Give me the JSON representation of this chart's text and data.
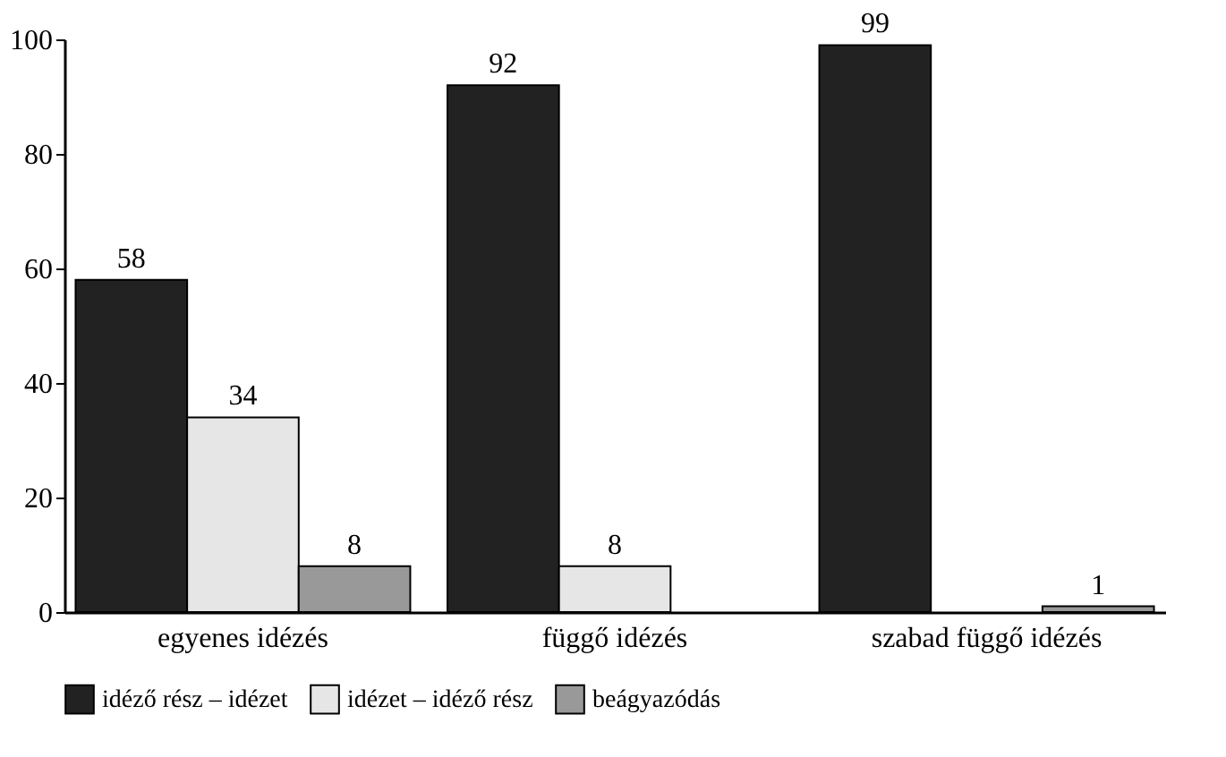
{
  "chart_data": {
    "type": "bar",
    "categories": [
      "egyenes idézés",
      "függő idézés",
      "szabad függő idézés"
    ],
    "series": [
      {
        "name": "idéző rész – idézet",
        "color": "#222222",
        "values": [
          58,
          92,
          99
        ],
        "value_labels": [
          "58",
          "92",
          "99"
        ]
      },
      {
        "name": "idézet – idéző rész",
        "color": "#e6e6e6",
        "values": [
          34,
          8,
          null
        ],
        "value_labels": [
          "34",
          "8",
          null
        ]
      },
      {
        "name": "beágyazódás",
        "color": "#999999",
        "values": [
          8,
          null,
          1
        ],
        "value_labels": [
          "8",
          null,
          "1"
        ]
      }
    ],
    "ylim": [
      0,
      100
    ],
    "yticks": [
      0,
      20,
      40,
      60,
      80,
      100
    ],
    "grid": false,
    "legend": "bottom"
  }
}
